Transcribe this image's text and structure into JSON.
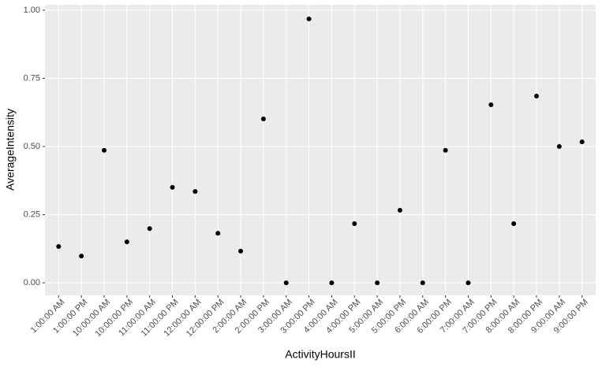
{
  "chart_data": {
    "type": "scatter",
    "x_label": "ActivityHoursII",
    "y_label": "AverageIntensity",
    "categories": [
      "1:00:00 AM",
      "1:00:00 PM",
      "10:00:00 AM",
      "10:00:00 PM",
      "11:00:00 AM",
      "11:00:00 PM",
      "12:00:00 AM",
      "12:00:00 PM",
      "2:00:00 AM",
      "2:00:00 PM",
      "3:00:00 AM",
      "3:00:00 PM",
      "4:00:00 AM",
      "4:00:00 PM",
      "5:00:00 AM",
      "5:00:00 PM",
      "6:00:00 AM",
      "6:00:00 PM",
      "7:00:00 AM",
      "7:00:00 PM",
      "8:00:00 AM",
      "8:00:00 PM",
      "9:00:00 AM",
      "9:00:00 PM"
    ],
    "values": [
      0.133,
      0.098,
      0.486,
      0.15,
      0.199,
      0.35,
      0.335,
      0.182,
      0.116,
      0.601,
      0,
      0.968,
      0,
      0.217,
      0,
      0.266,
      0,
      0.486,
      0,
      0.653,
      0.217,
      0.685,
      0.5,
      0.517
    ],
    "color": "#000000",
    "ylim": [
      -0.046,
      1.02
    ],
    "yticks": [
      {
        "value": 0,
        "label": "0.00"
      },
      0.25,
      {
        "value": 0.5,
        "label": "0.50"
      },
      0.75,
      {
        "value": 1,
        "label": "1.00"
      }
    ],
    "grid": true
  }
}
